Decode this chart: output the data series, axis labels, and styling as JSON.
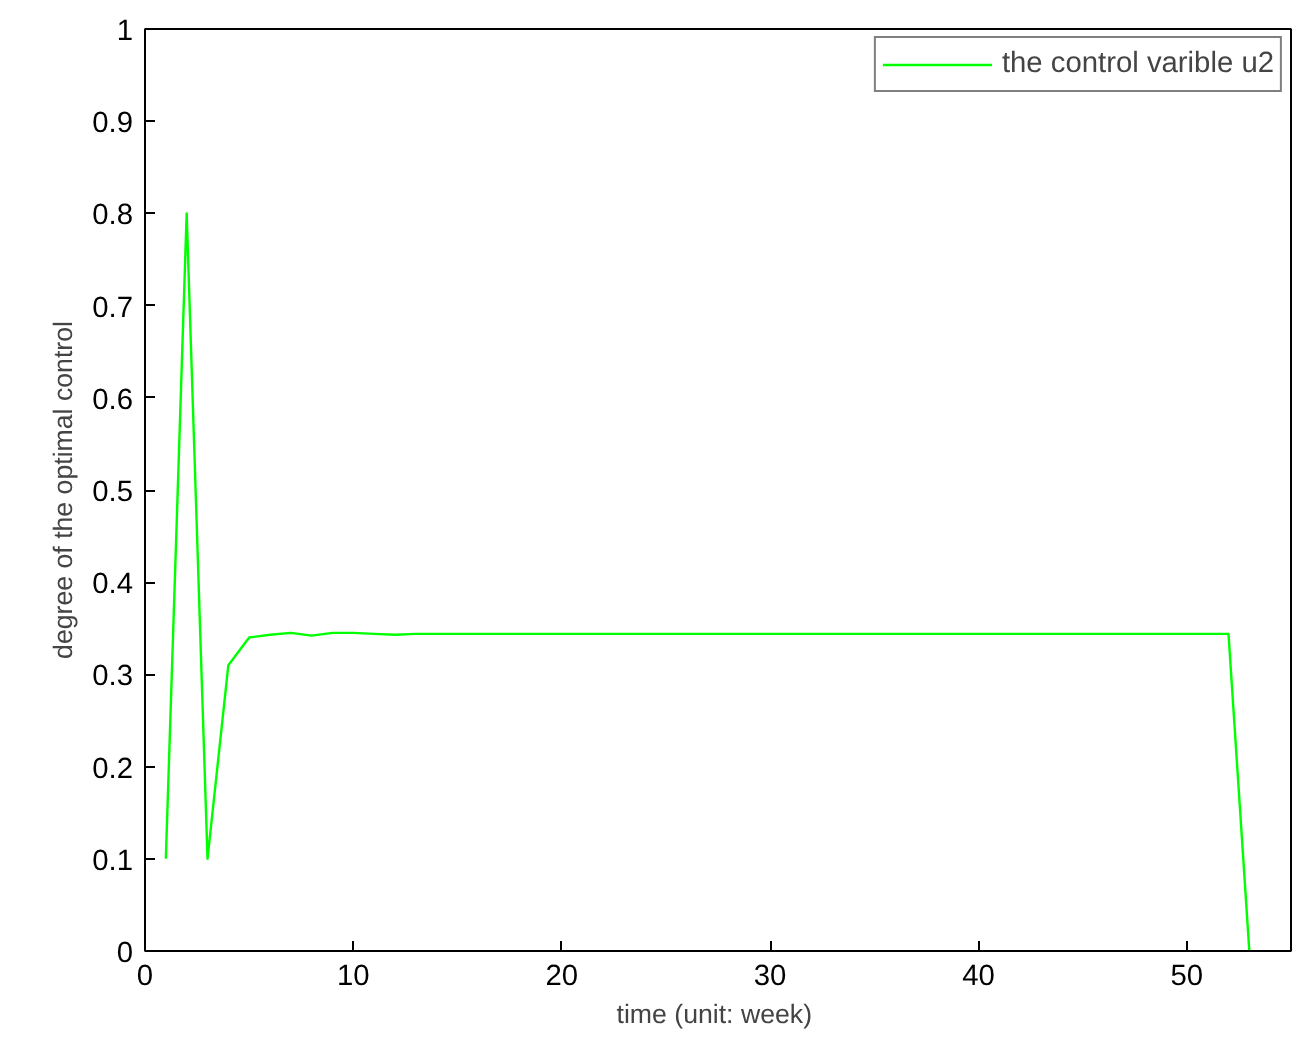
{
  "chart_data": {
    "type": "line",
    "xlabel": "time  (unit: week)",
    "ylabel": "degree of the optimal control",
    "x": [
      1,
      2,
      3,
      4,
      5,
      6,
      7,
      8,
      9,
      10,
      11,
      12,
      13,
      14,
      15,
      16,
      17,
      18,
      19,
      20,
      21,
      22,
      23,
      24,
      25,
      26,
      27,
      28,
      29,
      30,
      31,
      32,
      33,
      34,
      35,
      36,
      37,
      38,
      39,
      40,
      41,
      42,
      43,
      44,
      45,
      46,
      47,
      48,
      49,
      50,
      51,
      52,
      53
    ],
    "series": [
      {
        "name": "the control varible u2",
        "color": "#00ff00",
        "values": [
          0.1,
          0.8,
          0.1,
          0.31,
          0.34,
          0.343,
          0.345,
          0.342,
          0.345,
          0.345,
          0.344,
          0.343,
          0.344,
          0.344,
          0.344,
          0.344,
          0.344,
          0.344,
          0.344,
          0.344,
          0.344,
          0.344,
          0.344,
          0.344,
          0.344,
          0.344,
          0.344,
          0.344,
          0.344,
          0.344,
          0.344,
          0.344,
          0.344,
          0.344,
          0.344,
          0.344,
          0.344,
          0.344,
          0.344,
          0.344,
          0.344,
          0.344,
          0.344,
          0.344,
          0.344,
          0.344,
          0.344,
          0.344,
          0.344,
          0.344,
          0.344,
          0.344,
          0
        ]
      }
    ],
    "xlim": [
      0,
      55
    ],
    "ylim": [
      0,
      1
    ],
    "xticks": [
      0,
      10,
      20,
      30,
      40,
      50
    ],
    "yticks": [
      0,
      0.1,
      0.2,
      0.3,
      0.4,
      0.5,
      0.6,
      0.7,
      0.8,
      0.9,
      1
    ],
    "grid": false,
    "legend": "top right",
    "line_style": "solid",
    "marker": "none"
  }
}
